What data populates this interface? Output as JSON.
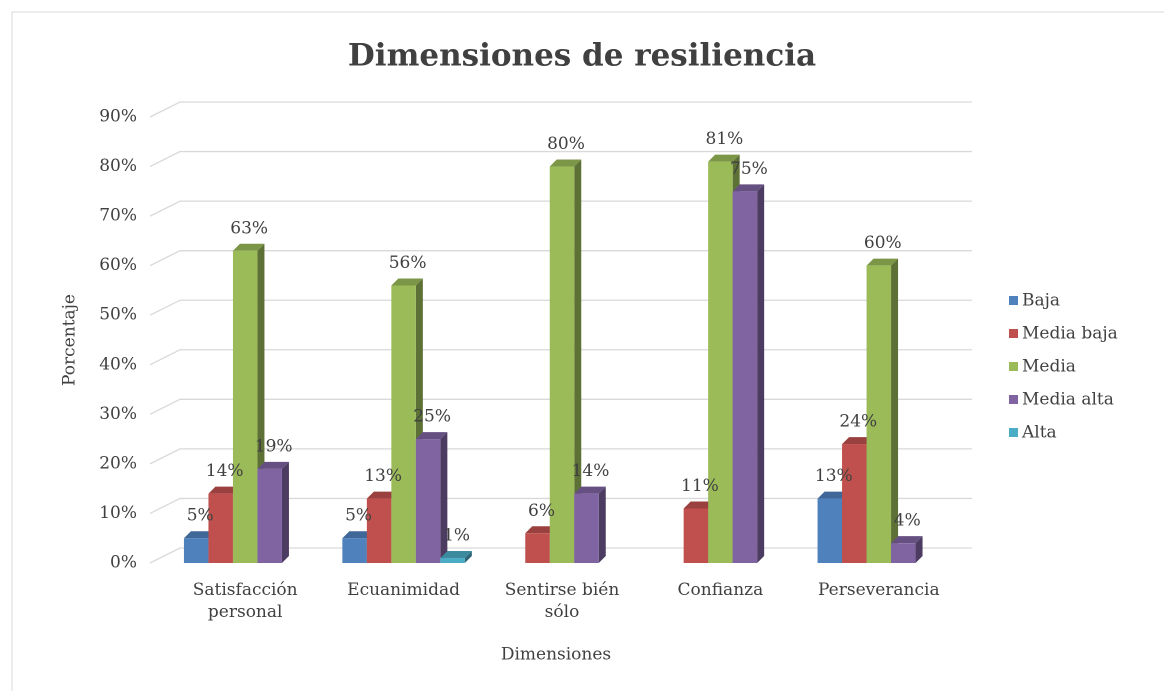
{
  "chart_data": {
    "type": "bar3d",
    "title": "Dimensiones de resiliencia",
    "x_label": "Dimensiones",
    "y_label": "Porcentaje",
    "categories": [
      "Satisfacción personal",
      "Ecuanimidad",
      "Sentirse bién sólo",
      "Confianza",
      "Perseverancia"
    ],
    "series": [
      {
        "name": "Baja",
        "color": "#4f81bd",
        "values": [
          5,
          5,
          null,
          null,
          13
        ],
        "value_labels": [
          "5%",
          "5%",
          null,
          null,
          "13%"
        ]
      },
      {
        "name": "Media baja",
        "color": "#c0504d",
        "values": [
          14,
          13,
          6,
          11,
          24
        ],
        "value_labels": [
          "14%",
          "13%",
          "6%",
          "11%",
          "24%"
        ]
      },
      {
        "name": "Media",
        "color": "#9bbb59",
        "values": [
          63,
          56,
          80,
          81,
          60
        ],
        "value_labels": [
          "63%",
          "56%",
          "80%",
          "81%",
          "60%"
        ]
      },
      {
        "name": "Media alta",
        "color": "#8064a2",
        "values": [
          19,
          25,
          14,
          75,
          4
        ],
        "value_labels": [
          "19%",
          "25%",
          "14%",
          "75%",
          "4%"
        ]
      },
      {
        "name": "Alta",
        "color": "#4bacc6",
        "values": [
          null,
          1,
          null,
          null,
          null
        ],
        "value_labels": [
          null,
          "1%",
          null,
          null,
          null
        ]
      }
    ],
    "ylim": [
      0,
      90
    ],
    "yticks": [
      {
        "value": 0,
        "label": "0%"
      },
      {
        "value": 10,
        "label": "10%"
      },
      {
        "value": 20,
        "label": "20%"
      },
      {
        "value": 30,
        "label": "30%"
      },
      {
        "value": 40,
        "label": "40%"
      },
      {
        "value": 50,
        "label": "50%"
      },
      {
        "value": 60,
        "label": "60%"
      },
      {
        "value": 70,
        "label": "70%"
      },
      {
        "value": 80,
        "label": "80%"
      },
      {
        "value": 90,
        "label": "90%"
      }
    ],
    "grid": true,
    "legend": "right"
  }
}
